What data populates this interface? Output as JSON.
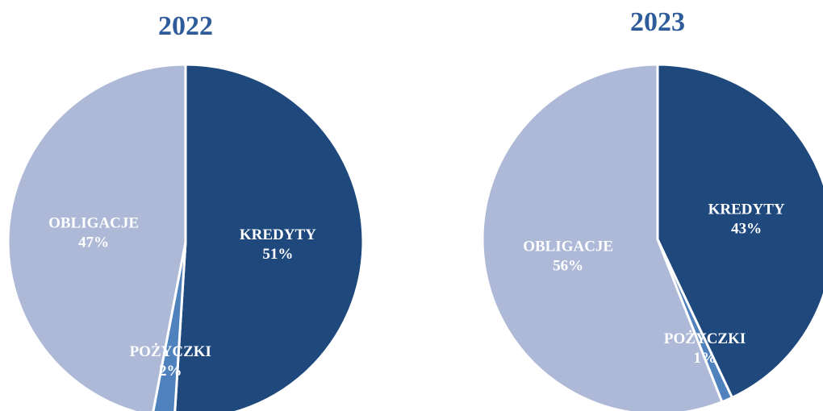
{
  "chart_data": [
    {
      "type": "pie",
      "title": "2022",
      "categories": [
        "KREDYTY",
        "POŻYCZKI",
        "OBLIGACJE"
      ],
      "values": [
        51,
        2,
        47
      ],
      "value_labels": [
        "51%",
        "2%",
        "47%"
      ],
      "colors": [
        "#1f497d",
        "#4f81bd",
        "#adb9d6"
      ]
    },
    {
      "type": "pie",
      "title": "2023",
      "categories": [
        "KREDYTY",
        "POŻYCZKI",
        "OBLIGACJE"
      ],
      "values": [
        43,
        1,
        56
      ],
      "value_labels": [
        "43%",
        "1%",
        "56%"
      ],
      "colors": [
        "#1f497d",
        "#4f81bd",
        "#adb9d6"
      ]
    }
  ]
}
